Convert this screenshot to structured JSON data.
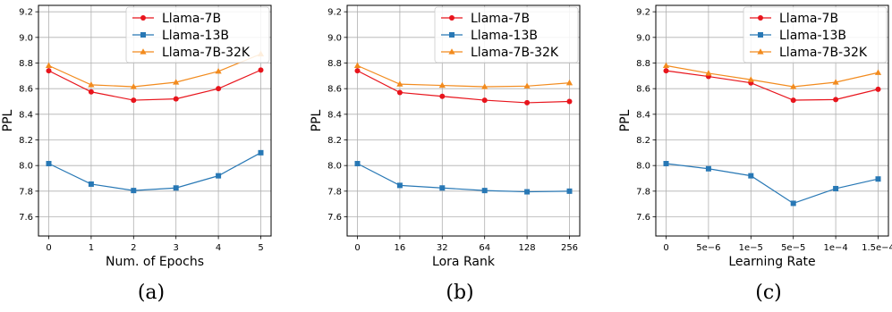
{
  "colors": {
    "llama7b": "#e8141c",
    "llama13b": "#2878b5",
    "llama7b32k": "#f28b1e",
    "grid": "#b0b0b0"
  },
  "chart_data": [
    {
      "type": "line",
      "caption": "(a)",
      "xlabel": "Num. of Epochs",
      "ylabel": "PPL",
      "categories": [
        "0",
        "1",
        "2",
        "3",
        "4",
        "5"
      ],
      "ylim": [
        7.45,
        9.25
      ],
      "yticks": [
        "7.6",
        "7.8",
        "8.0",
        "8.2",
        "8.4",
        "8.6",
        "8.8",
        "9.0",
        "9.2"
      ],
      "grid": true,
      "legend": "top-right",
      "series": [
        {
          "name": "Llama-7B",
          "values": [
            8.74,
            8.575,
            8.51,
            8.52,
            8.6,
            8.745
          ]
        },
        {
          "name": "Llama-13B",
          "values": [
            8.015,
            7.855,
            7.805,
            7.825,
            7.92,
            8.1
          ]
        },
        {
          "name": "Llama-7B-32K",
          "values": [
            8.78,
            8.63,
            8.615,
            8.65,
            8.735,
            8.87
          ]
        }
      ]
    },
    {
      "type": "line",
      "caption": "(b)",
      "xlabel": "Lora Rank",
      "ylabel": "PPL",
      "categories": [
        "0",
        "16",
        "32",
        "64",
        "128",
        "256"
      ],
      "ylim": [
        7.45,
        9.25
      ],
      "yticks": [
        "7.6",
        "7.8",
        "8.0",
        "8.2",
        "8.4",
        "8.6",
        "8.8",
        "9.0",
        "9.2"
      ],
      "grid": true,
      "legend": "top-right",
      "series": [
        {
          "name": "Llama-7B",
          "values": [
            8.74,
            8.57,
            8.54,
            8.51,
            8.49,
            8.5
          ]
        },
        {
          "name": "Llama-13B",
          "values": [
            8.015,
            7.845,
            7.825,
            7.805,
            7.795,
            7.8
          ]
        },
        {
          "name": "Llama-7B-32K",
          "values": [
            8.78,
            8.635,
            8.625,
            8.615,
            8.62,
            8.645
          ]
        }
      ]
    },
    {
      "type": "line",
      "caption": "(c)",
      "xlabel": "Learning Rate",
      "ylabel": "PPL",
      "categories": [
        "0",
        "5e−6",
        "1e−5",
        "5e−5",
        "1e−4",
        "1.5e−4"
      ],
      "ylim": [
        7.45,
        9.25
      ],
      "yticks": [
        "7.6",
        "7.8",
        "8.0",
        "8.2",
        "8.4",
        "8.6",
        "8.8",
        "9.0",
        "9.2"
      ],
      "grid": true,
      "legend": "top-right",
      "series": [
        {
          "name": "Llama-7B",
          "values": [
            8.74,
            8.695,
            8.645,
            8.51,
            8.515,
            8.595
          ]
        },
        {
          "name": "Llama-13B",
          "values": [
            8.015,
            7.975,
            7.92,
            7.705,
            7.82,
            7.895
          ]
        },
        {
          "name": "Llama-7B-32K",
          "values": [
            8.78,
            8.72,
            8.67,
            8.615,
            8.65,
            8.725
          ]
        }
      ]
    }
  ]
}
